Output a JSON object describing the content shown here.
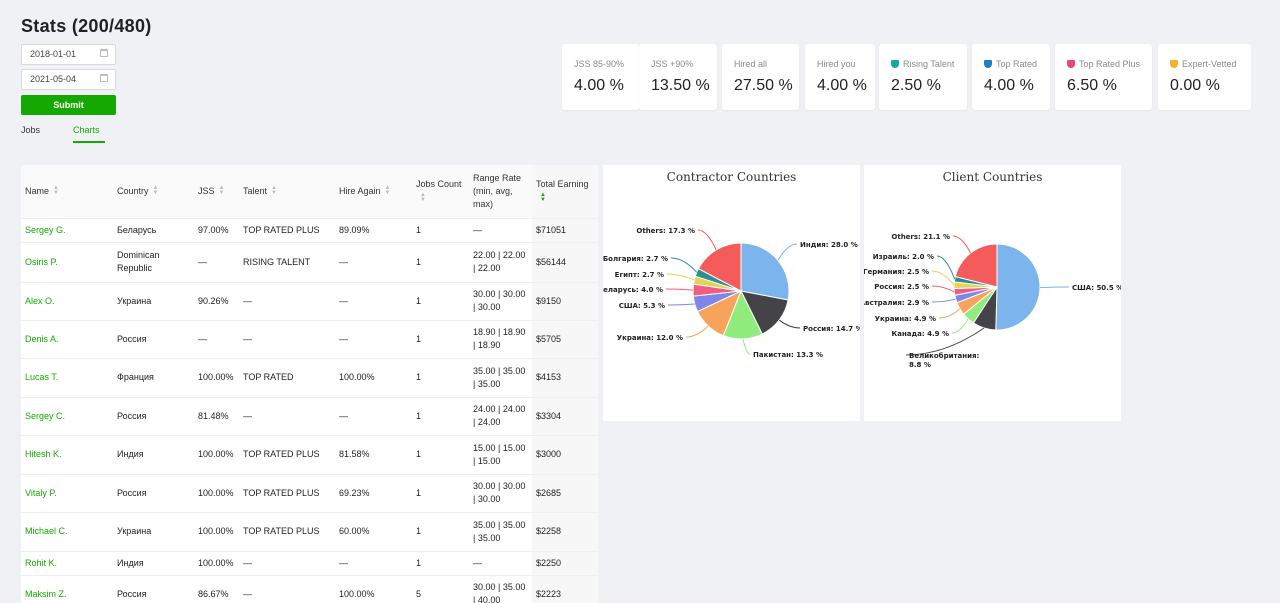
{
  "page": {
    "title": "Stats (200/480)"
  },
  "filters": {
    "date_from": "2018-01-01",
    "date_to": "2021-05-04",
    "submit_label": "Submit"
  },
  "tabs": [
    {
      "label": "Jobs",
      "active": false
    },
    {
      "label": "Charts",
      "active": true
    }
  ],
  "stats": [
    {
      "label": "JSS 85-90%",
      "value": "4.00 %"
    },
    {
      "label": "JSS +90%",
      "value": "13.50 %"
    },
    {
      "label": "Hired all",
      "value": "27.50 %"
    },
    {
      "label": "Hired you",
      "value": "4.00 %"
    },
    {
      "label": "Rising Talent",
      "value": "2.50 %",
      "badge_color": "#1aa89b"
    },
    {
      "label": "Top Rated",
      "value": "4.00 %",
      "badge_color": "#1f7fc9"
    },
    {
      "label": "Top Rated Plus",
      "value": "6.50 %",
      "badge_color": "#e8457a"
    },
    {
      "label": "Expert-Vetted",
      "value": "0.00 %",
      "badge_color": "#f0b429"
    }
  ],
  "table": {
    "columns": [
      "Name",
      "Country",
      "JSS",
      "Talent",
      "Hire Again",
      "Jobs Count",
      "Range Rate (min, avg, max)",
      "Total Earning"
    ],
    "rows": [
      {
        "name": "Sergey G.",
        "country": "Беларусь",
        "jss": "97.00%",
        "talent": "TOP RATED PLUS",
        "hire_again": "89.09%",
        "jobs": "1",
        "range": "—",
        "earning": "$71051"
      },
      {
        "name": "Osiris P.",
        "country": "Dominican Republic",
        "jss": "—",
        "talent": "RISING TALENT",
        "hire_again": "—",
        "jobs": "1",
        "range": "22.00 | 22.00 | 22.00",
        "earning": "$56144"
      },
      {
        "name": "Alex O.",
        "country": "Украина",
        "jss": "90.26%",
        "talent": "—",
        "hire_again": "—",
        "jobs": "1",
        "range": "30.00 | 30.00 | 30.00",
        "earning": "$9150"
      },
      {
        "name": "Denis A.",
        "country": "Россия",
        "jss": "—",
        "talent": "—",
        "hire_again": "—",
        "jobs": "1",
        "range": "18.90 | 18.90 | 18.90",
        "earning": "$5705"
      },
      {
        "name": "Lucas T.",
        "country": "Франция",
        "jss": "100.00%",
        "talent": "TOP RATED",
        "hire_again": "100.00%",
        "jobs": "1",
        "range": "35.00 | 35.00 | 35.00",
        "earning": "$4153"
      },
      {
        "name": "Sergey C.",
        "country": "Россия",
        "jss": "81.48%",
        "talent": "—",
        "hire_again": "—",
        "jobs": "1",
        "range": "24.00 | 24.00 | 24.00",
        "earning": "$3304"
      },
      {
        "name": "Hitesh K.",
        "country": "Индия",
        "jss": "100.00%",
        "talent": "TOP RATED PLUS",
        "hire_again": "81.58%",
        "jobs": "1",
        "range": "15.00 | 15.00 | 15.00",
        "earning": "$3000"
      },
      {
        "name": "Vitaly P.",
        "country": "Россия",
        "jss": "100.00%",
        "talent": "TOP RATED PLUS",
        "hire_again": "69.23%",
        "jobs": "1",
        "range": "30.00 | 30.00 | 30.00",
        "earning": "$2685"
      },
      {
        "name": "Michael C.",
        "country": "Украина",
        "jss": "100.00%",
        "talent": "TOP RATED PLUS",
        "hire_again": "60.00%",
        "jobs": "1",
        "range": "35.00 | 35.00 | 35.00",
        "earning": "$2258"
      },
      {
        "name": "Rohit K.",
        "country": "Индия",
        "jss": "100.00%",
        "talent": "—",
        "hire_again": "—",
        "jobs": "1",
        "range": "—",
        "earning": "$2250"
      },
      {
        "name": "Maksim Z.",
        "country": "Россия",
        "jss": "86.67%",
        "talent": "—",
        "hire_again": "100.00%",
        "jobs": "5",
        "range": "30.00 | 35.00 | 40.00",
        "earning": "$2223"
      }
    ]
  },
  "chart_data": [
    {
      "type": "pie",
      "title": "Contractor Countries",
      "slices": [
        {
          "label": "Индия",
          "value": 28.0,
          "text": "Индия: 28.0 %",
          "color": "#7cb5ec"
        },
        {
          "label": "Россия",
          "value": 14.7,
          "text": "Россия: 14.7 %",
          "color": "#434348"
        },
        {
          "label": "Пакистан",
          "value": 13.3,
          "text": "Пакистан: 13.3 %",
          "color": "#90ed7d"
        },
        {
          "label": "Украина",
          "value": 12.0,
          "text": "Украина: 12.0 %",
          "color": "#f7a35c"
        },
        {
          "label": "США",
          "value": 5.3,
          "text": "США: 5.3 %",
          "color": "#8085e9"
        },
        {
          "label": "Беларусь",
          "value": 4.0,
          "text": "Беларусь: 4.0 %",
          "color": "#f15c80"
        },
        {
          "label": "Египт",
          "value": 2.7,
          "text": "Египт: 2.7 %",
          "color": "#e4d354"
        },
        {
          "label": "Болгария",
          "value": 2.7,
          "text": "Болгария: 2.7 %",
          "color": "#2b908f"
        },
        {
          "label": "Others",
          "value": 17.3,
          "text": "Others: 17.3 %",
          "color": "#f45b5b"
        }
      ]
    },
    {
      "type": "pie",
      "title": "Client Countries",
      "slices": [
        {
          "label": "США",
          "value": 50.5,
          "text": "США: 50.5 %",
          "color": "#7cb5ec"
        },
        {
          "label": "Великобритания",
          "value": 8.8,
          "text": "Великобритания: 8.8 %",
          "color": "#434348"
        },
        {
          "label": "Канада",
          "value": 4.9,
          "text": "Канада: 4.9 %",
          "color": "#90ed7d"
        },
        {
          "label": "Украина",
          "value": 4.9,
          "text": "Украина: 4.9 %",
          "color": "#f7a35c"
        },
        {
          "label": "Австралия",
          "value": 2.9,
          "text": "Австралия: 2.9 %",
          "color": "#8085e9"
        },
        {
          "label": "Россия",
          "value": 2.5,
          "text": "Россия: 2.5 %",
          "color": "#f15c80"
        },
        {
          "label": "Германия",
          "value": 2.5,
          "text": "Германия: 2.5 %",
          "color": "#e4d354"
        },
        {
          "label": "Израиль",
          "value": 2.0,
          "text": "Израиль: 2.0 %",
          "color": "#2b908f"
        },
        {
          "label": "Others",
          "value": 21.1,
          "text": "Others: 21.1 %",
          "color": "#f45b5b"
        }
      ]
    }
  ]
}
